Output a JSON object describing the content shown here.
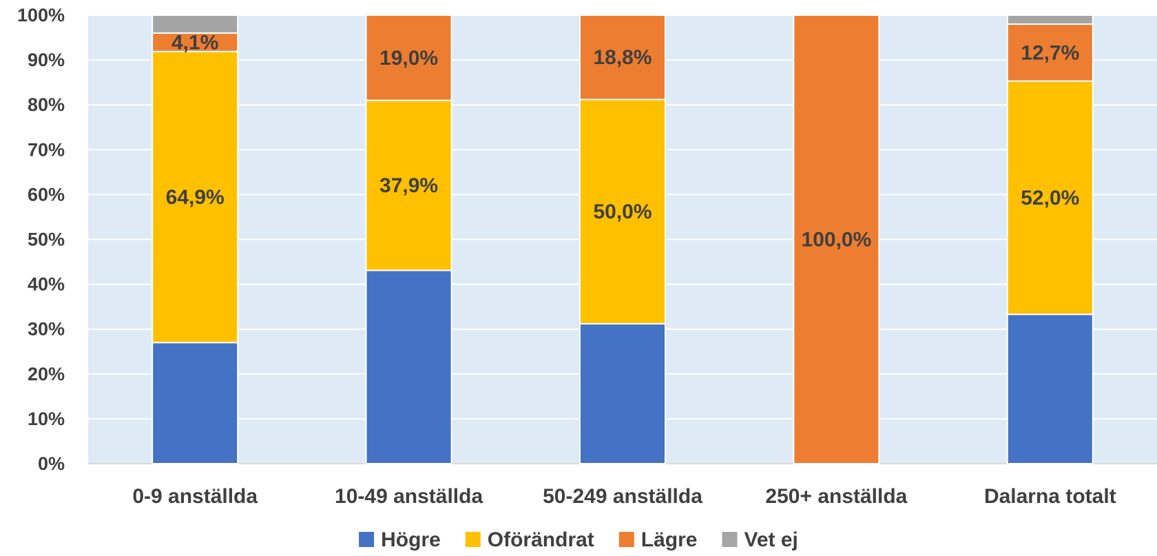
{
  "chart_data": {
    "type": "bar",
    "stacked": true,
    "categories": [
      "0-9 anställda",
      "10-49 anställda",
      "50-249 anställda",
      "250+ anställda",
      "Dalarna totalt"
    ],
    "series": [
      {
        "name": "Högre",
        "color": "#4472C4",
        "values": [
          27.0,
          43.1,
          31.2,
          0.0,
          33.3
        ],
        "labels": [
          "",
          "",
          "",
          "",
          ""
        ]
      },
      {
        "name": "Oförändrat",
        "color": "#FFC000",
        "values": [
          64.9,
          37.9,
          50.0,
          0.0,
          52.0
        ],
        "labels": [
          "64,9%",
          "37,9%",
          "50,0%",
          "",
          "52,0%"
        ]
      },
      {
        "name": "Lägre",
        "color": "#ED7D31",
        "values": [
          4.1,
          19.0,
          18.8,
          100.0,
          12.7
        ],
        "labels": [
          "4,1%",
          "19,0%",
          "18,8%",
          "100,0%",
          "12,7%"
        ]
      },
      {
        "name": "Vet ej",
        "color": "#A5A5A5",
        "values": [
          4.0,
          0.0,
          0.0,
          0.0,
          2.0
        ],
        "labels": [
          "",
          "",
          "",
          "",
          ""
        ]
      }
    ],
    "y_ticks": [
      "0%",
      "10%",
      "20%",
      "30%",
      "40%",
      "50%",
      "60%",
      "70%",
      "80%",
      "90%",
      "100%"
    ],
    "ylim": [
      0,
      100
    ],
    "grid": true,
    "plot_background": "#DEEBF7",
    "legend_position": "bottom",
    "title": "",
    "xlabel": "",
    "ylabel": ""
  }
}
